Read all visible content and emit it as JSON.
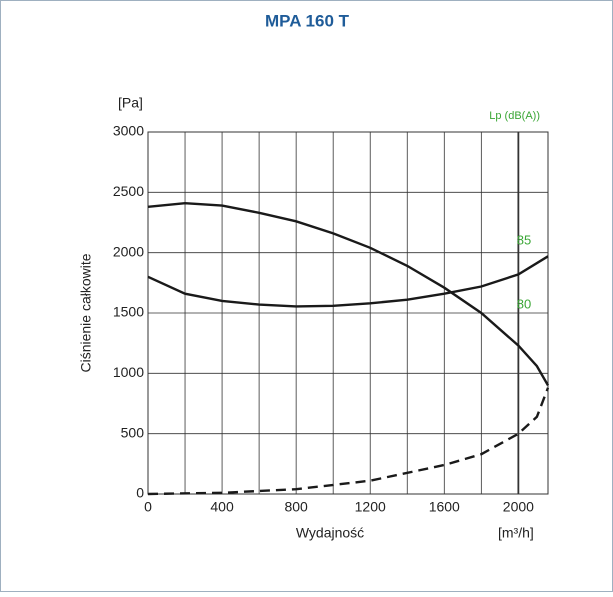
{
  "chart_data": {
    "type": "line",
    "title": "MPA 160 T",
    "y_unit": "[Pa]",
    "x_unit": "[m³/h]",
    "y2_label": "Lp (dB(A))",
    "xlabel": "Wydajność",
    "ylabel": "Ciśnienie całkowite",
    "annotations": [
      "85",
      "80"
    ],
    "xlim": [
      0,
      2160
    ],
    "xticks": [
      0,
      400,
      800,
      1200,
      1600,
      2000
    ],
    "ylim": [
      0,
      3000
    ],
    "yticks": [
      0,
      500,
      1000,
      1500,
      2000,
      2500,
      3000
    ],
    "grid": true,
    "series": [
      {
        "color": "#1a1a1a",
        "style": "solid",
        "x": [
          0,
          200,
          400,
          600,
          800,
          1000,
          1200,
          1400,
          1600,
          1800,
          2000,
          2100,
          2160
        ],
        "values": [
          2380,
          2410,
          2390,
          2330,
          2260,
          2160,
          2040,
          1890,
          1710,
          1500,
          1230,
          1060,
          900
        ]
      },
      {
        "color": "#1a1a1a",
        "style": "solid",
        "x": [
          0,
          200,
          400,
          600,
          800,
          1000,
          1200,
          1400,
          1600,
          1800,
          2000,
          2160
        ],
        "values": [
          1800,
          1660,
          1600,
          1570,
          1555,
          1560,
          1580,
          1610,
          1660,
          1720,
          1820,
          1970
        ]
      },
      {
        "color": "#1a1a1a",
        "style": "dashed",
        "x": [
          0,
          400,
          800,
          1200,
          1600,
          1800,
          2000,
          2100,
          2160
        ],
        "values": [
          0,
          10,
          40,
          110,
          240,
          330,
          500,
          640,
          880
        ]
      }
    ]
  }
}
